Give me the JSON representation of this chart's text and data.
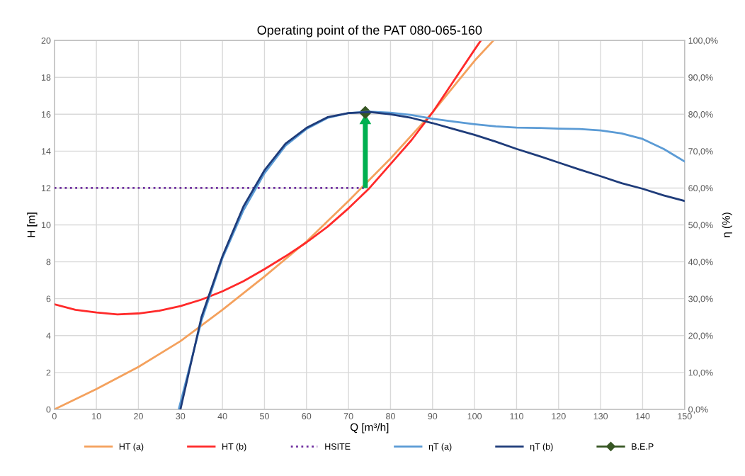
{
  "chart_data": {
    "type": "line",
    "title": "Operating point of the PAT 080-065-160",
    "xlabel": "Q [m³/h]",
    "ylabel": "H [m]",
    "y2label": "η (%)",
    "xlim": [
      0,
      150
    ],
    "xticks": [
      0,
      10,
      20,
      30,
      40,
      50,
      60,
      70,
      80,
      90,
      100,
      110,
      120,
      130,
      140,
      150
    ],
    "ylim": [
      0,
      20
    ],
    "yticks": [
      0,
      2,
      4,
      6,
      8,
      10,
      12,
      14,
      16,
      18,
      20
    ],
    "y2lim": [
      0,
      100
    ],
    "y2ticks": [
      {
        "value": 0,
        "label": "0,0%"
      },
      {
        "value": 10,
        "label": "10,0%"
      },
      {
        "value": 20,
        "label": "20,0%"
      },
      {
        "value": 30,
        "label": "30,0%"
      },
      {
        "value": 40,
        "label": "40,0%"
      },
      {
        "value": 50,
        "label": "50,0%"
      },
      {
        "value": 60,
        "label": "60,0%"
      },
      {
        "value": 70,
        "label": "70,0%"
      },
      {
        "value": 80,
        "label": "80,0%"
      },
      {
        "value": 90,
        "label": "90,0%"
      },
      {
        "value": 100,
        "label": "100,0%"
      }
    ],
    "grid": true,
    "legend": "bottom",
    "series": [
      {
        "name": "HT (a)",
        "color": "#f4a15d",
        "x": [
          0,
          10,
          20,
          30,
          40,
          50,
          60,
          70,
          80,
          90,
          100,
          104.5
        ],
        "values": [
          0,
          1.1,
          2.3,
          3.7,
          5.4,
          7.2,
          9.1,
          11.3,
          13.6,
          16.1,
          18.9,
          20
        ]
      },
      {
        "name": "HT (b)",
        "color": "#ff2a2a",
        "x": [
          0,
          5,
          10,
          15,
          20,
          25,
          30,
          35,
          40,
          45,
          50,
          55,
          60,
          65,
          70,
          75,
          80,
          85,
          90,
          95,
          100,
          101.5
        ],
        "values": [
          5.7,
          5.4,
          5.25,
          5.15,
          5.2,
          5.35,
          5.6,
          5.95,
          6.4,
          6.95,
          7.6,
          8.3,
          9.05,
          9.9,
          10.9,
          12.0,
          13.3,
          14.6,
          16.1,
          17.8,
          19.5,
          20
        ]
      },
      {
        "name": "HSITE",
        "color": "#7030a0",
        "line_style": "dotted",
        "x": [
          0,
          74
        ],
        "values": [
          12,
          12
        ]
      },
      {
        "name": "ηT (a)",
        "color": "#5b9bd5",
        "axis": "y2",
        "x": [
          29.6,
          35,
          40,
          45,
          50,
          55,
          60,
          65,
          70,
          75,
          80,
          85,
          90,
          95,
          100,
          105,
          110,
          115,
          120,
          125,
          130,
          135,
          140,
          145,
          150
        ],
        "values": [
          0,
          24,
          41,
          54,
          64,
          71.5,
          76,
          79,
          80.3,
          80.7,
          80.4,
          79.8,
          78.8,
          78,
          77.3,
          76.7,
          76.4,
          76.3,
          76.1,
          76,
          75.6,
          74.8,
          73.3,
          70.6,
          67.2
        ]
      },
      {
        "name": "ηT (b)",
        "color": "#1f3c7a",
        "axis": "y2",
        "x": [
          30,
          35,
          40,
          45,
          50,
          55,
          60,
          65,
          70,
          75,
          80,
          85,
          90,
          95,
          100,
          105,
          110,
          115,
          120,
          125,
          130,
          135,
          140,
          145,
          150
        ],
        "values": [
          0,
          25,
          41.5,
          55,
          64.8,
          72,
          76.3,
          79.2,
          80.3,
          80.6,
          80.0,
          79,
          77.6,
          76,
          74.4,
          72.6,
          70.6,
          68.8,
          66.9,
          65,
          63.2,
          61.3,
          59.8,
          58,
          56.5
        ]
      },
      {
        "name": "B.E.P",
        "color": "#375623",
        "type": "scatter",
        "marker": "diamond",
        "x": [
          74
        ],
        "values": [
          16.1
        ]
      }
    ]
  }
}
